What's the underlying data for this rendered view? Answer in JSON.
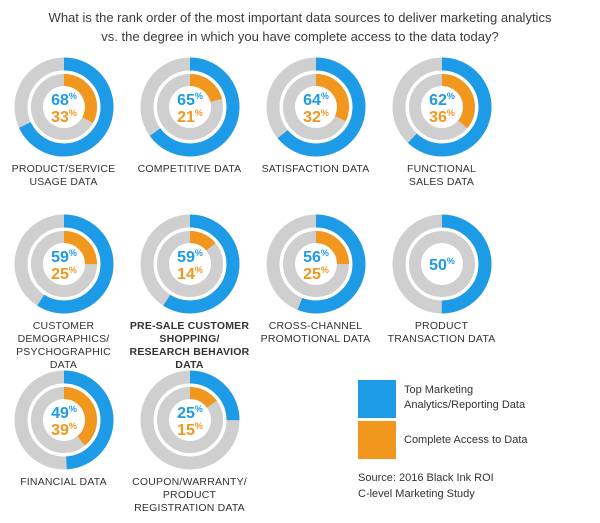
{
  "title": "What is the rank order of the most important data sources to deliver marketing analytics vs. the degree in which you have complete access to the data today?",
  "colors": {
    "blue": "#1e9be6",
    "orange": "#f2971e",
    "track": "#cfcfcf"
  },
  "chart_data": {
    "type": "donut",
    "title": "What is the rank order of the most important data sources to deliver marketing analytics vs. the degree in which you have complete access to the data today?",
    "series_names": [
      "Top Marketing Analytics/Reporting Data",
      "Complete Access to Data"
    ],
    "items": [
      {
        "label_lines": [
          "PRODUCT/SERVICE",
          "USAGE DATA"
        ],
        "top": 68,
        "access": 33,
        "bold": false
      },
      {
        "label_lines": [
          "COMPETITIVE DATA"
        ],
        "top": 65,
        "access": 21,
        "bold": false
      },
      {
        "label_lines": [
          "SATISFACTION DATA"
        ],
        "top": 64,
        "access": 32,
        "bold": false
      },
      {
        "label_lines": [
          "FUNCTIONAL",
          "SALES DATA"
        ],
        "top": 62,
        "access": 36,
        "bold": false
      },
      {
        "label_lines": [
          "CUSTOMER",
          "DEMOGRAPHICS/",
          "PSYCHOGRAPHIC",
          "DATA"
        ],
        "top": 59,
        "access": 25,
        "bold": false
      },
      {
        "label_lines": [
          "PRE-SALE CUSTOMER",
          "SHOPPING/",
          "RESEARCH BEHAVIOR",
          "DATA"
        ],
        "top": 59,
        "access": 14,
        "bold": true
      },
      {
        "label_lines": [
          "CROSS-CHANNEL",
          "PROMOTIONAL DATA"
        ],
        "top": 56,
        "access": 25,
        "bold": false
      },
      {
        "label_lines": [
          "PRODUCT",
          "TRANSACTION DATA"
        ],
        "top": 50,
        "access": null,
        "bold": false
      },
      {
        "label_lines": [
          "FINANCIAL DATA"
        ],
        "top": 49,
        "access": 39,
        "bold": false
      },
      {
        "label_lines": [
          "COUPON/WARRANTY/",
          "PRODUCT",
          "REGISTRATION DATA"
        ],
        "top": 25,
        "access": 15,
        "bold": false
      }
    ]
  },
  "legend": {
    "top": "Top Marketing Analytics/Reporting Data",
    "top_lines": [
      "Top Marketing",
      "Analytics/Reporting Data"
    ],
    "access": "Complete Access to Data"
  },
  "source_lines": [
    "Source: 2016 Black Ink ROI",
    "C-level Marketing Study"
  ]
}
